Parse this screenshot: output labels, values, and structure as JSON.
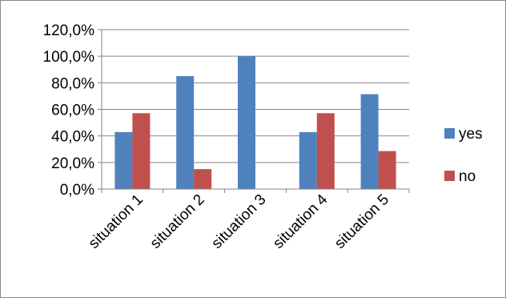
{
  "chart_data": {
    "type": "bar",
    "categories": [
      "situation 1",
      "situation 2",
      "situation 3",
      "situation 4",
      "situation 5"
    ],
    "series": [
      {
        "name": "yes",
        "values": [
          42.9,
          85.0,
          100.0,
          42.9,
          71.4
        ],
        "color": "#4F81BD"
      },
      {
        "name": "no",
        "values": [
          57.1,
          15.0,
          0.0,
          57.1,
          28.6
        ],
        "color": "#C0504D"
      }
    ],
    "y_ticks": [
      "0,0%",
      "20,0%",
      "40,0%",
      "60,0%",
      "80,0%",
      "100,0%",
      "120,0%"
    ],
    "ylim": [
      0,
      120
    ],
    "ystep": 20,
    "grid": true,
    "legend_position": "right"
  }
}
